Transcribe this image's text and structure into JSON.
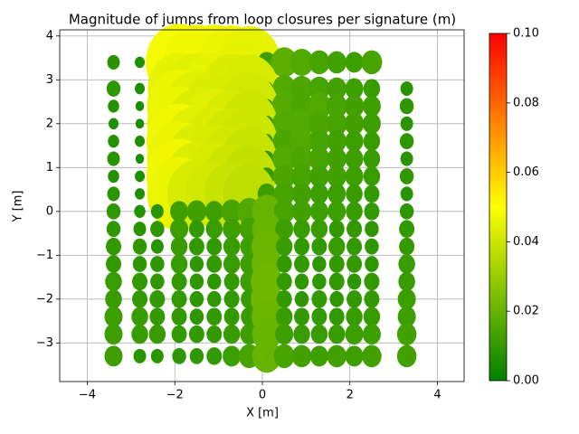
{
  "chart_data": {
    "type": "scatter",
    "title": "Magnitude of jumps from loop closures per signature (m)",
    "x_label": "X [m]",
    "y_label": "Y [m]",
    "xlim": [
      -4.63,
      4.61
    ],
    "ylim": [
      -3.88,
      4.14
    ],
    "xticks": [
      {
        "value": -4,
        "label": "−4"
      },
      {
        "value": -2,
        "label": "−2"
      },
      0,
      2,
      4
    ],
    "yticks": [
      {
        "value": -3,
        "label": "−3"
      },
      {
        "value": -2,
        "label": "−2"
      },
      {
        "value": -1,
        "label": "−1"
      },
      0,
      1,
      2,
      3,
      4
    ],
    "grid": true,
    "colormap": [
      "#008000",
      "#ffff00",
      "#ff0000"
    ],
    "clim": [
      0,
      0.1
    ],
    "cticks": [
      {
        "value": 0,
        "label": "0.00"
      },
      {
        "value": 0.02,
        "label": "0.02"
      },
      {
        "value": 0.04,
        "label": "0.04"
      },
      {
        "value": 0.06,
        "label": "0.06"
      },
      {
        "value": 0.08,
        "label": "0.08"
      },
      {
        "value": 0.1,
        "label": "0.10"
      }
    ],
    "x": [
      -3.4,
      -2.8,
      -2.4,
      -1.9,
      -1.5,
      -1.1,
      -0.7,
      -0.3,
      0.1,
      0.5,
      0.9,
      1.3,
      1.7,
      2.1,
      2.5,
      -3.4,
      -2.8,
      -2.4,
      -1.9,
      -1.5,
      -1.1,
      -0.7,
      -0.3,
      0.1,
      0.5,
      0.9,
      1.3,
      1.7,
      2.1,
      2.5,
      3.3,
      -3.4,
      -2.8,
      -2.4,
      -1.9,
      -1.5,
      -1.1,
      -0.7,
      -0.3,
      0.1,
      0.5,
      0.9,
      1.3,
      1.7,
      2.1,
      2.5,
      3.3,
      -3.4,
      -2.8,
      -2.4,
      -1.9,
      -1.5,
      -1.1,
      -0.7,
      -0.3,
      0.1,
      0.5,
      0.9,
      1.3,
      1.7,
      2.1,
      2.5,
      3.3,
      -3.4,
      -2.8,
      -2.4,
      -1.9,
      -1.5,
      -1.1,
      -0.7,
      -0.3,
      0.1,
      0.5,
      0.9,
      1.3,
      1.7,
      2.1,
      2.5,
      3.3,
      -3.4,
      -2.8,
      -2.4,
      -1.9,
      -1.5,
      -1.1,
      -0.7,
      -0.3,
      0.1,
      0.5,
      0.9,
      1.3,
      1.7,
      2.1,
      2.5,
      3.3,
      -3.4,
      -2.8,
      -2.4,
      -1.9,
      -1.5,
      -1.1,
      -0.7,
      -0.3,
      0.1,
      0.5,
      0.9,
      1.3,
      1.7,
      2.1,
      2.5,
      3.3,
      -3.4,
      -2.8,
      -2.4,
      -1.9,
      -1.5,
      -1.1,
      -0.7,
      -0.3,
      0.1,
      0.5,
      0.9,
      1.3,
      1.7,
      2.1,
      2.5,
      3.3,
      -3.4,
      -2.8,
      -2.4,
      -1.9,
      -1.5,
      -1.1,
      -0.7,
      -0.3,
      0.1,
      0.5,
      0.9,
      1.3,
      1.7,
      2.1,
      2.5,
      3.3,
      -3.4,
      -2.8,
      -2.4,
      -1.9,
      -1.5,
      -1.1,
      -0.7,
      -0.3,
      0.1,
      0.5,
      0.9,
      1.3,
      1.7,
      2.1,
      2.5,
      3.3,
      -3.4,
      -2.8,
      -2.4,
      -1.9,
      -1.5,
      -1.1,
      -0.7,
      -0.3,
      0.1,
      0.5,
      0.9,
      1.3,
      1.7,
      2.1,
      2.5,
      3.3,
      -3.4,
      -2.8,
      -2.4,
      -1.9,
      -1.5,
      -1.1,
      -0.7,
      -0.3,
      0.1,
      0.5,
      0.9,
      1.3,
      1.7,
      2.1,
      2.5,
      3.3,
      -3.4,
      -2.8,
      -2.4,
      -1.9,
      -1.5,
      -1.1,
      -0.7,
      -0.3,
      0.1,
      0.5,
      0.9,
      1.3,
      1.7,
      2.1,
      2.5,
      3.3,
      -3.4,
      -2.8,
      -2.4,
      -1.9,
      -1.5,
      -1.1,
      -0.7,
      -0.3,
      0.1,
      0.5,
      0.9,
      1.3,
      1.7,
      2.1,
      2.5,
      3.3,
      -3.4,
      -2.8,
      -2.4,
      -1.9,
      -1.5,
      -1.1,
      -0.7,
      -0.3,
      0.1,
      0.5,
      0.9,
      1.3,
      1.7,
      2.1,
      2.5,
      3.3,
      -3.4,
      -2.8,
      -2.4,
      -1.9,
      -1.5,
      -1.1,
      -0.7,
      -0.3,
      0.1,
      0.5,
      0.9,
      1.3,
      1.7,
      2.1,
      2.5,
      3.3,
      -3.4,
      -2.8,
      -2.4,
      -1.9,
      -1.5,
      -1.1,
      -0.7,
      -0.3,
      0.1,
      0.5,
      0.9,
      1.3,
      1.7,
      2.1,
      2.5,
      3.3
    ],
    "y": [
      3.4,
      3.4,
      3.4,
      3.4,
      3.4,
      3.4,
      3.4,
      3.4,
      3.4,
      3.4,
      3.4,
      3.4,
      3.4,
      3.4,
      3.4,
      2.8,
      2.8,
      2.8,
      2.8,
      2.8,
      2.8,
      2.8,
      2.8,
      2.8,
      2.8,
      2.8,
      2.8,
      2.8,
      2.8,
      2.8,
      2.8,
      2.4,
      2.4,
      2.4,
      2.4,
      2.4,
      2.4,
      2.4,
      2.4,
      2.4,
      2.4,
      2.4,
      2.4,
      2.4,
      2.4,
      2.4,
      2.4,
      2.0,
      2.0,
      2.0,
      2.0,
      2.0,
      2.0,
      2.0,
      2.0,
      2.0,
      2.0,
      2.0,
      2.0,
      2.0,
      2.0,
      2.0,
      2.0,
      1.6,
      1.6,
      1.6,
      1.6,
      1.6,
      1.6,
      1.6,
      1.6,
      1.6,
      1.6,
      1.6,
      1.6,
      1.6,
      1.6,
      1.6,
      1.6,
      1.2,
      1.2,
      1.2,
      1.2,
      1.2,
      1.2,
      1.2,
      1.2,
      1.2,
      1.2,
      1.2,
      1.2,
      1.2,
      1.2,
      1.2,
      1.2,
      0.8,
      0.8,
      0.8,
      0.8,
      0.8,
      0.8,
      0.8,
      0.8,
      0.8,
      0.8,
      0.8,
      0.8,
      0.8,
      0.8,
      0.8,
      0.8,
      0.4,
      0.4,
      0.4,
      0.4,
      0.4,
      0.4,
      0.4,
      0.4,
      0.4,
      0.4,
      0.4,
      0.4,
      0.4,
      0.4,
      0.4,
      0.4,
      0.0,
      0.0,
      0.0,
      0.0,
      0.0,
      0.0,
      0.0,
      0.0,
      0.0,
      0.0,
      0.0,
      0.0,
      0.0,
      0.0,
      0.0,
      0.0,
      -0.4,
      -0.4,
      -0.4,
      -0.4,
      -0.4,
      -0.4,
      -0.4,
      -0.4,
      -0.4,
      -0.4,
      -0.4,
      -0.4,
      -0.4,
      -0.4,
      -0.4,
      -0.4,
      -0.8,
      -0.8,
      -0.8,
      -0.8,
      -0.8,
      -0.8,
      -0.8,
      -0.8,
      -0.8,
      -0.8,
      -0.8,
      -0.8,
      -0.8,
      -0.8,
      -0.8,
      -0.8,
      -1.2,
      -1.2,
      -1.2,
      -1.2,
      -1.2,
      -1.2,
      -1.2,
      -1.2,
      -1.2,
      -1.2,
      -1.2,
      -1.2,
      -1.2,
      -1.2,
      -1.2,
      -1.2,
      -1.6,
      -1.6,
      -1.6,
      -1.6,
      -1.6,
      -1.6,
      -1.6,
      -1.6,
      -1.6,
      -1.6,
      -1.6,
      -1.6,
      -1.6,
      -1.6,
      -1.6,
      -1.6,
      -2.0,
      -2.0,
      -2.0,
      -2.0,
      -2.0,
      -2.0,
      -2.0,
      -2.0,
      -2.0,
      -2.0,
      -2.0,
      -2.0,
      -2.0,
      -2.0,
      -2.0,
      -2.0,
      -2.4,
      -2.4,
      -2.4,
      -2.4,
      -2.4,
      -2.4,
      -2.4,
      -2.4,
      -2.4,
      -2.4,
      -2.4,
      -2.4,
      -2.4,
      -2.4,
      -2.4,
      -2.4,
      -2.8,
      -2.8,
      -2.8,
      -2.8,
      -2.8,
      -2.8,
      -2.8,
      -2.8,
      -2.8,
      -2.8,
      -2.8,
      -2.8,
      -2.8,
      -2.8,
      -2.8,
      -2.8,
      -3.3,
      -3.3,
      -3.3,
      -3.3,
      -3.3,
      -3.3,
      -3.3,
      -3.3,
      -3.3,
      -3.3,
      -3.3,
      -3.3,
      -3.3,
      -3.3,
      -3.3,
      -3.3
    ],
    "values": [
      0.008,
      0.006,
      0.008,
      0.048,
      0.047,
      0.047,
      0.046,
      0.045,
      0.012,
      0.018,
      0.016,
      0.014,
      0.013,
      0.012,
      0.014,
      0.009,
      0.006,
      0.007,
      0.045,
      0.044,
      0.045,
      0.043,
      0.042,
      0.008,
      0.016,
      0.015,
      0.014,
      0.013,
      0.012,
      0.011,
      0.008,
      0.007,
      0.005,
      0.006,
      0.046,
      0.044,
      0.043,
      0.042,
      0.041,
      0.008,
      0.017,
      0.015,
      0.016,
      0.014,
      0.013,
      0.012,
      0.009,
      0.006,
      0.005,
      0.006,
      0.046,
      0.043,
      0.044,
      0.042,
      0.04,
      0.009,
      0.016,
      0.016,
      0.015,
      0.014,
      0.013,
      0.012,
      0.008,
      0.007,
      0.006,
      0.005,
      0.047,
      0.044,
      0.043,
      0.041,
      0.04,
      0.008,
      0.015,
      0.016,
      0.014,
      0.013,
      0.012,
      0.011,
      0.009,
      0.008,
      0.005,
      0.006,
      0.046,
      0.043,
      0.042,
      0.041,
      0.039,
      0.009,
      0.016,
      0.015,
      0.014,
      0.013,
      0.012,
      0.011,
      0.008,
      0.007,
      0.006,
      0.006,
      0.047,
      0.043,
      0.042,
      0.04,
      0.038,
      0.01,
      0.015,
      0.014,
      0.013,
      0.013,
      0.012,
      0.011,
      0.009,
      0.008,
      0.006,
      0.007,
      0.046,
      0.042,
      0.041,
      0.039,
      0.037,
      0.012,
      0.014,
      0.013,
      0.012,
      0.012,
      0.011,
      0.01,
      0.008,
      0.009,
      0.007,
      0.008,
      0.012,
      0.013,
      0.012,
      0.014,
      0.016,
      0.02,
      0.014,
      0.013,
      0.012,
      0.012,
      0.011,
      0.01,
      0.009,
      0.009,
      0.008,
      0.009,
      0.012,
      0.01,
      0.011,
      0.012,
      0.013,
      0.02,
      0.012,
      0.011,
      0.011,
      0.01,
      0.01,
      0.009,
      0.01,
      0.01,
      0.009,
      0.008,
      0.011,
      0.01,
      0.01,
      0.011,
      0.012,
      0.021,
      0.011,
      0.01,
      0.01,
      0.011,
      0.01,
      0.009,
      0.01,
      0.01,
      0.009,
      0.009,
      0.011,
      0.009,
      0.01,
      0.011,
      0.012,
      0.021,
      0.01,
      0.01,
      0.009,
      0.01,
      0.01,
      0.009,
      0.011,
      0.011,
      0.01,
      0.009,
      0.01,
      0.009,
      0.009,
      0.01,
      0.012,
      0.022,
      0.01,
      0.009,
      0.009,
      0.01,
      0.009,
      0.01,
      0.011,
      0.011,
      0.01,
      0.01,
      0.01,
      0.009,
      0.009,
      0.01,
      0.011,
      0.022,
      0.01,
      0.009,
      0.01,
      0.009,
      0.01,
      0.01,
      0.012,
      0.012,
      0.011,
      0.01,
      0.01,
      0.009,
      0.01,
      0.01,
      0.011,
      0.021,
      0.011,
      0.01,
      0.01,
      0.01,
      0.011,
      0.011,
      0.012,
      0.012,
      0.011,
      0.011,
      0.01,
      0.01,
      0.01,
      0.011,
      0.012,
      0.02,
      0.012,
      0.011,
      0.011,
      0.011,
      0.012,
      0.012,
      0.013,
      0.012,
      0.008,
      0.008,
      0.009,
      0.009,
      0.01,
      0.012,
      0.014,
      0.02,
      0.014,
      0.013,
      0.012,
      0.013,
      0.012,
      0.013,
      0.013
    ]
  }
}
